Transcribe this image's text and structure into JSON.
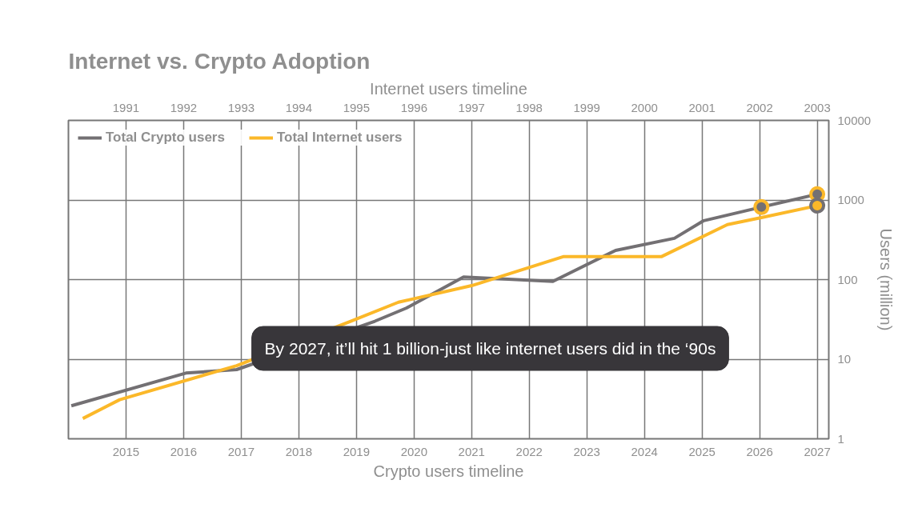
{
  "chart_data": {
    "type": "line",
    "title": "Internet vs. Crypto Adoption",
    "xlabel": "Crypto users timeline",
    "x2label": "Internet users timeline",
    "ylabel": "Users (million)",
    "xlim": [
      2014,
      2027.2
    ],
    "xticks": [
      2015,
      2016,
      2017,
      2018,
      2019,
      2020,
      2021,
      2022,
      2023,
      2024,
      2025,
      2026,
      2027
    ],
    "x2lim": [
      1990,
      2003.2
    ],
    "x2ticks": [
      1991,
      1992,
      1993,
      1994,
      1995,
      1996,
      1997,
      1998,
      1999,
      2000,
      2001,
      2002,
      2003
    ],
    "ylim": [
      1,
      10000
    ],
    "yticks": [
      1,
      10,
      100,
      1000,
      10000
    ],
    "log": "y",
    "grid": true,
    "legend": "top left",
    "line_style": "solid",
    "marker": "none",
    "series": [
      {
        "name": "Total Crypto users",
        "color": "#737073",
        "x": [
          2014.05,
          2016.04,
          2016.92,
          2019.32,
          2019.87,
          2020.86,
          2022.41,
          2023.5,
          2024.52,
          2025.03,
          2026.03,
          2027
        ],
        "values": [
          2.6,
          6.7,
          7.4,
          30,
          44,
          108,
          95,
          233,
          330,
          550,
          815,
          1180
        ]
      },
      {
        "name": "Total Internet users",
        "color": "#fbb829",
        "axis": "x2",
        "x": [
          1990.25,
          1990.89,
          1992.92,
          1994.9,
          1995.73,
          1997.0,
          1998.6,
          2000.3,
          2001.44,
          2002.03,
          2003
        ],
        "values": [
          1.8,
          3.1,
          8.3,
          30,
          52,
          84,
          195,
          195,
          490,
          600,
          850
        ]
      },
      {
        "type": "scatter",
        "color": "#737073",
        "marker": "circle",
        "x": [
          2026.03,
          2027
        ],
        "values": [
          815,
          1180
        ]
      },
      {
        "type": "scatter",
        "color": "#fbb829",
        "marker": "circle",
        "axis": "x2",
        "x": [
          2003
        ],
        "values": [
          850
        ]
      }
    ],
    "annotations": [
      "By 2027, it’ll hit 1 billion-just like internet users did in the ‘90s"
    ]
  }
}
